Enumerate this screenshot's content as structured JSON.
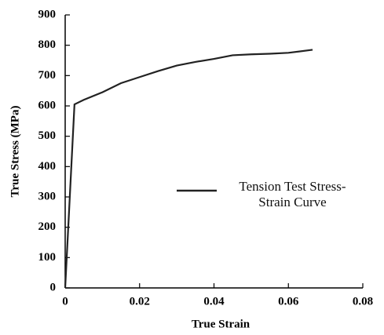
{
  "chart_data": {
    "type": "line",
    "x_label": "True Strain",
    "y_label": "True Stress (MPa)",
    "xlim": [
      0,
      0.08
    ],
    "xticks": [
      0,
      0.02,
      0.04,
      0.06,
      0.08
    ],
    "ylim": [
      0,
      900
    ],
    "yticks": [
      0,
      100,
      200,
      300,
      400,
      500,
      600,
      700,
      800,
      900
    ],
    "series": [
      {
        "name": "Tension Test Stress-Strain Curve",
        "color": "#222222",
        "x": [
          0,
          0.0025,
          0.005,
          0.01,
          0.015,
          0.02,
          0.025,
          0.03,
          0.035,
          0.04,
          0.045,
          0.05,
          0.055,
          0.06,
          0.0665
        ],
        "values": [
          0,
          605,
          620,
          645,
          675,
          695,
          715,
          733,
          745,
          755,
          767,
          770,
          772,
          775,
          785
        ]
      }
    ]
  }
}
